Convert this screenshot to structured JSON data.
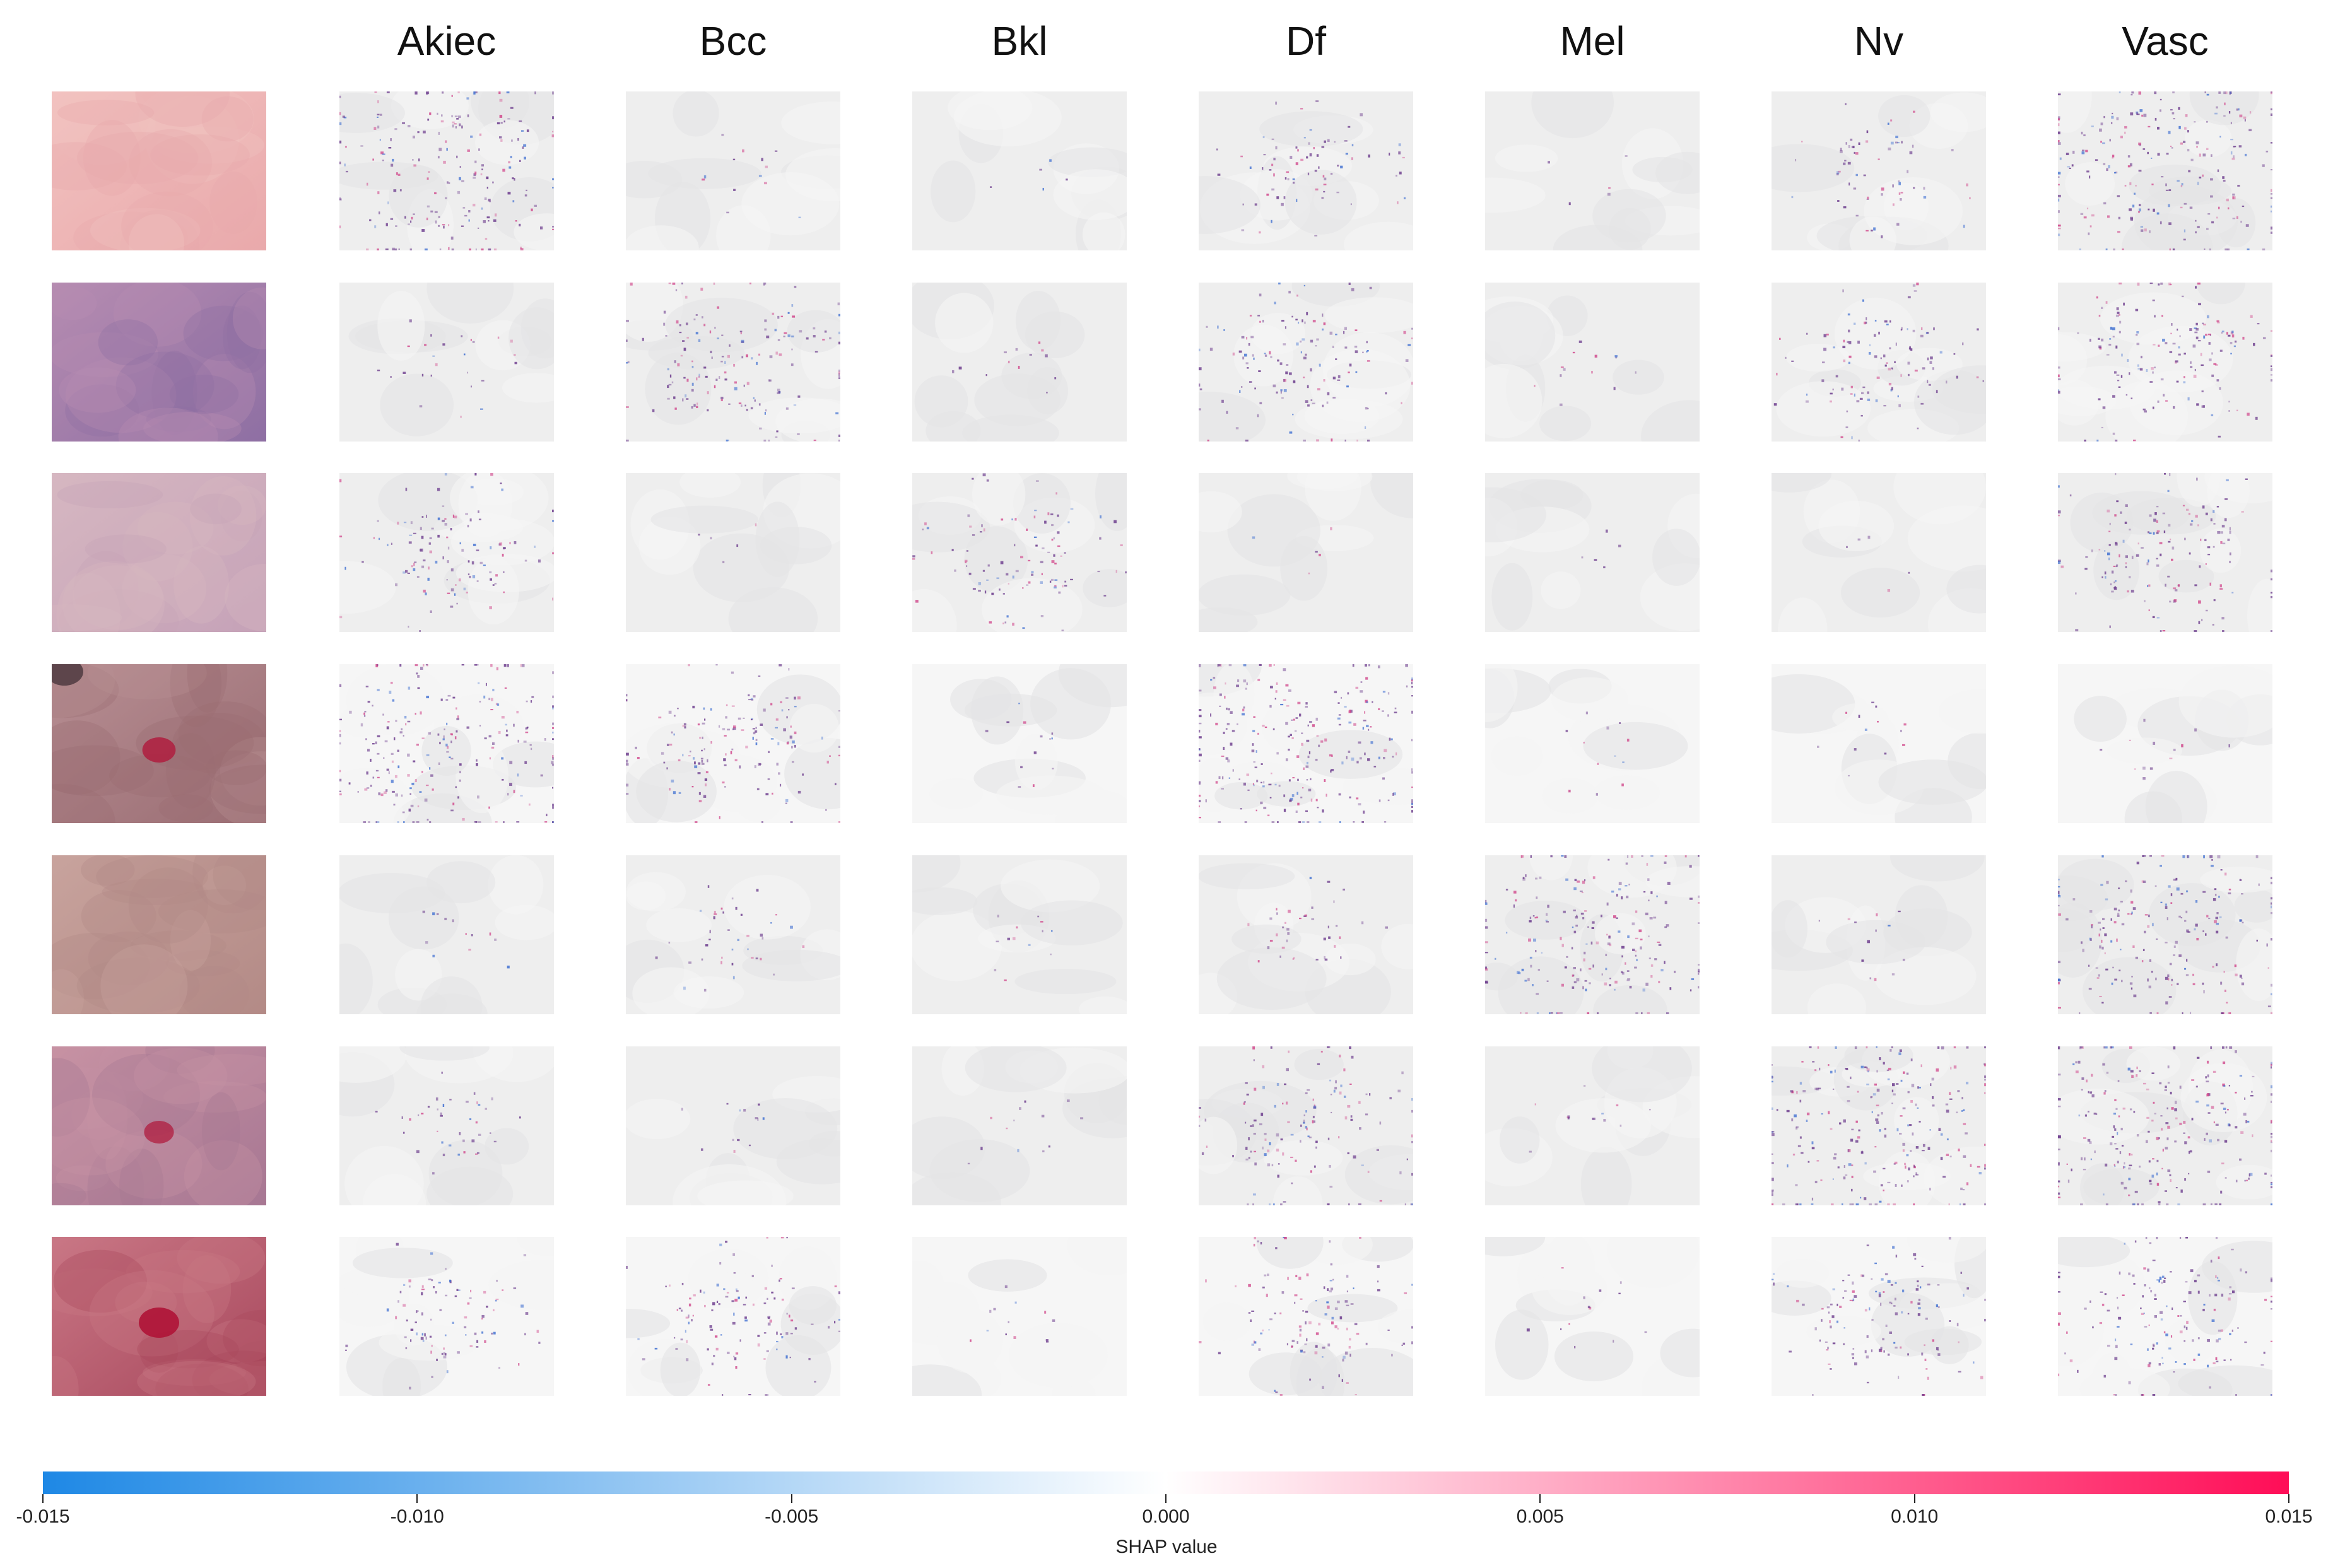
{
  "chart_data": {
    "type": "heatmap",
    "title": "",
    "columns": [
      "Akiec",
      "Bcc",
      "Bkl",
      "Df",
      "Mel",
      "Nv",
      "Vasc"
    ],
    "rows": 7,
    "row_labels": [],
    "input_images": [
      {
        "tone": "#f2c2c0",
        "tone2": "#e9a9ab",
        "lesion": 0
      },
      {
        "tone": "#b68cb1",
        "tone2": "#8e6fa3",
        "lesion": 0
      },
      {
        "tone": "#d6b7c1",
        "tone2": "#c5a2b8",
        "lesion": 0
      },
      {
        "tone": "#b78e93",
        "tone2": "#9a6d73",
        "lesion": 0.6
      },
      {
        "tone": "#c8a39d",
        "tone2": "#b38a86",
        "lesion": 0
      },
      {
        "tone": "#c792a3",
        "tone2": "#a77793",
        "lesion": 0.4
      },
      {
        "tone": "#c97785",
        "tone2": "#a8485d",
        "lesion": 1
      }
    ],
    "attribution_intensity": [
      [
        0.8,
        0.05,
        0.02,
        0.3,
        0.02,
        0.25,
        0.9
      ],
      [
        0.1,
        0.65,
        0.05,
        0.55,
        0.05,
        0.45,
        0.65
      ],
      [
        0.45,
        0.02,
        0.4,
        0.02,
        0.02,
        0.02,
        0.6
      ],
      [
        0.9,
        0.6,
        0.05,
        1.0,
        0.05,
        0.05,
        0.05
      ],
      [
        0.05,
        0.15,
        0.05,
        0.15,
        0.8,
        0.05,
        0.8
      ],
      [
        0.15,
        0.05,
        0.05,
        0.55,
        0.05,
        0.95,
        0.95
      ],
      [
        0.35,
        0.45,
        0.05,
        0.45,
        0.05,
        0.5,
        0.6
      ]
    ],
    "colorbar": {
      "label": "SHAP value",
      "range": [
        -0.015,
        0.015
      ],
      "ticks": [
        "-0.015",
        "-0.010",
        "-0.005",
        "0.000",
        "0.005",
        "0.010",
        "0.015"
      ],
      "tick_values": [
        -0.015,
        -0.01,
        -0.005,
        0.0,
        0.005,
        0.01,
        0.015
      ],
      "color_neg": "#1e88e5",
      "color_zero": "#ffffff",
      "color_pos": "#ff0d57"
    },
    "grid": false,
    "legend": "bottom colorbar"
  }
}
